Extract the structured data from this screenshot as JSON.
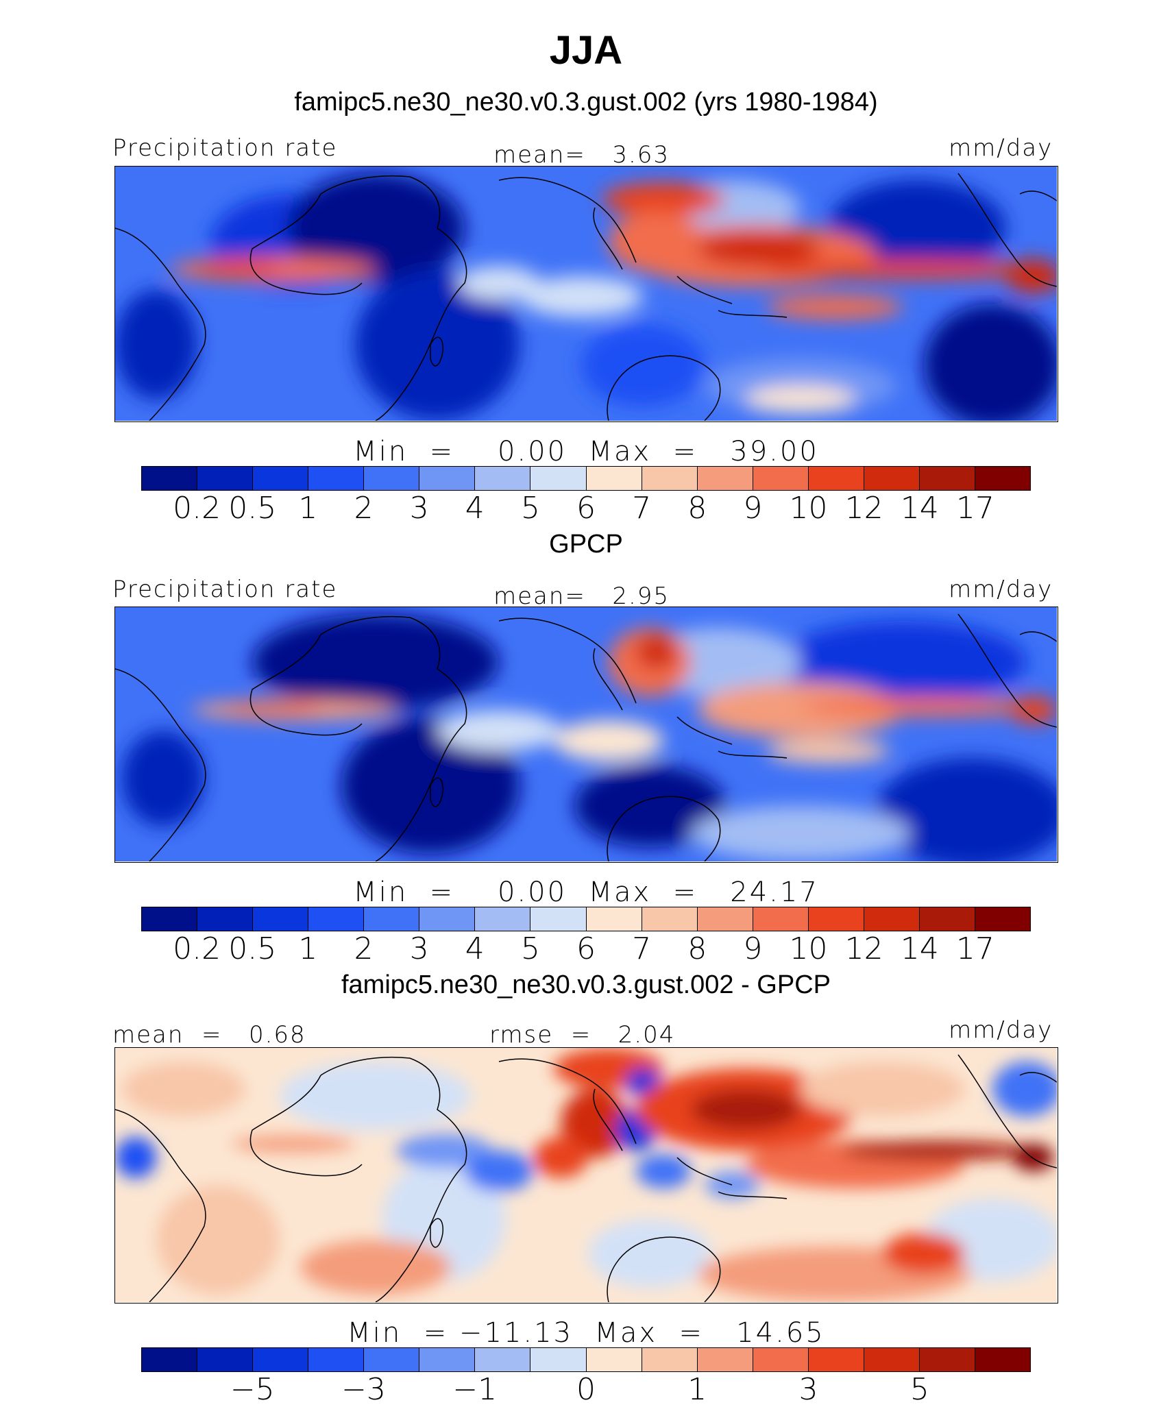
{
  "title": "JJA",
  "panels": [
    {
      "heading": "famipc5.ne30_ne30.v0.3.gust.002 (yrs 1980-1984)",
      "left_label": "Precipitation rate",
      "center_label": "mean=   3.63",
      "right_label": "mm/day",
      "stats": "Min  =    0.00  Max  =   39.00"
    },
    {
      "heading": "GPCP",
      "left_label": "Precipitation rate",
      "center_label": "mean=   2.95",
      "right_label": "mm/day",
      "stats": "Min  =    0.00  Max  =   24.17"
    },
    {
      "heading": "famipc5.ne30_ne30.v0.3.gust.002 - GPCP",
      "left_label": "mean  =   0.68",
      "center_label": "rmse  =   2.04",
      "right_label": "mm/day",
      "stats": "Min  = −11.13  Max  =   14.65"
    }
  ],
  "colorbar_abs": {
    "colors": [
      "#00108a",
      "#0020b8",
      "#0a36de",
      "#1f50f4",
      "#3f72f7",
      "#6f95f5",
      "#a3bdf4",
      "#d3e1f7",
      "#fce6d2",
      "#f8c6a9",
      "#f49c7c",
      "#f26d4c",
      "#e8421f",
      "#d02b0d",
      "#a91a08",
      "#800000"
    ],
    "labels": [
      "0.2",
      "0.5",
      "1",
      "2",
      "3",
      "4",
      "5",
      "6",
      "7",
      "8",
      "9",
      "10",
      "12",
      "14",
      "17"
    ]
  },
  "colorbar_diff": {
    "colors": [
      "#00108a",
      "#0020b8",
      "#0a36de",
      "#1f50f4",
      "#3f72f7",
      "#6f95f5",
      "#a3bdf4",
      "#d3e1f7",
      "#fce6d2",
      "#f8c6a9",
      "#f49c7c",
      "#f26d4c",
      "#e8421f",
      "#d02b0d",
      "#a91a08",
      "#800000"
    ],
    "labels": [
      "−5",
      "−3",
      "−1",
      "0",
      "1",
      "3",
      "5"
    ]
  }
}
